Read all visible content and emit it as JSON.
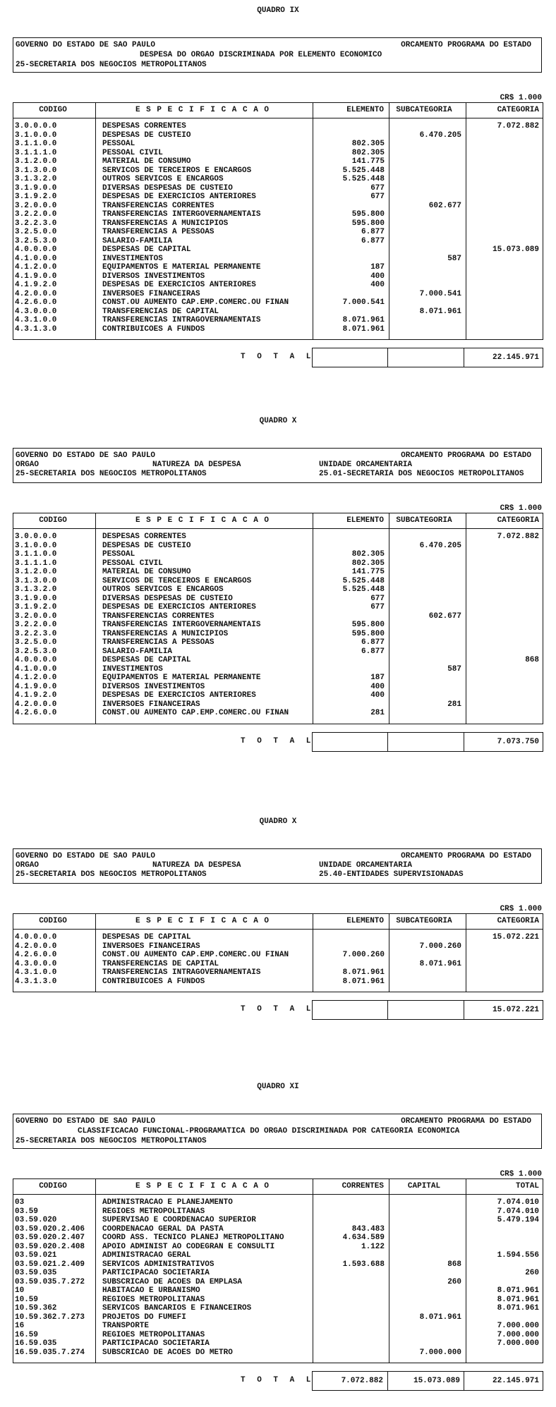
{
  "sections": [
    {
      "id": "quadro-ix",
      "title": "QUADRO IX",
      "header": {
        "left1": "GOVERNO DO ESTADO DE SAO PAULO",
        "right1": "ORCAMENTO PROGRAMA DO ESTADO",
        "center2": "DESPESA DO ORGAO DISCRIMINADA POR ELEMENTO ECONOMICO",
        "left3": "25-SECRETARIA DOS NEGOCIOS METROPOLITANOS"
      },
      "unit": "CR$ 1.000",
      "columns": [
        "CODIGO",
        "E S P E C I F I C A C A O",
        "ELEMENTO",
        "SUBCATEGORIA",
        "CATEGORIA"
      ],
      "rows": [
        [
          "3.0.0.0.0",
          "DESPESAS CORRENTES",
          "",
          "",
          "7.072.882"
        ],
        [
          "3.1.0.0.0",
          "DESPESAS DE CUSTEIO",
          "",
          "6.470.205",
          ""
        ],
        [
          "3.1.1.0.0",
          "PESSOAL",
          "802.305",
          "",
          ""
        ],
        [
          "3.1.1.1.0",
          "PESSOAL CIVIL",
          "802.305",
          "",
          ""
        ],
        [
          "3.1.2.0.0",
          "MATERIAL DE CONSUMO",
          "141.775",
          "",
          ""
        ],
        [
          "3.1.3.0.0",
          "SERVICOS DE TERCEIROS E ENCARGOS",
          "5.525.448",
          "",
          ""
        ],
        [
          "3.1.3.2.0",
          "OUTROS SERVICOS E ENCARGOS",
          "5.525.448",
          "",
          ""
        ],
        [
          "3.1.9.0.0",
          "DIVERSAS DESPESAS DE CUSTEIO",
          "677",
          "",
          ""
        ],
        [
          "3.1.9.2.0",
          "DESPESAS DE EXERCICIOS ANTERIORES",
          "677",
          "",
          ""
        ],
        [
          "3.2.0.0.0",
          "TRANSFERENCIAS CORRENTES",
          "",
          "602.677",
          ""
        ],
        [
          "3.2.2.0.0",
          "TRANSFERENCIAS INTERGOVERNAMENTAIS",
          "595.800",
          "",
          ""
        ],
        [
          "3.2.2.3.0",
          "TRANSFERENCIAS A MUNICIPIOS",
          "595.800",
          "",
          ""
        ],
        [
          "3.2.5.0.0",
          "TRANSFERENCIAS A PESSOAS",
          "6.877",
          "",
          ""
        ],
        [
          "3.2.5.3.0",
          "SALARIO-FAMILIA",
          "6.877",
          "",
          ""
        ],
        [
          "4.0.0.0.0",
          "DESPESAS DE CAPITAL",
          "",
          "",
          "15.073.089"
        ],
        [
          "4.1.0.0.0",
          "INVESTIMENTOS",
          "",
          "587",
          ""
        ],
        [
          "4.1.2.0.0",
          "EQUIPAMENTOS E MATERIAL PERMANENTE",
          "187",
          "",
          ""
        ],
        [
          "4.1.9.0.0",
          "DIVERSOS INVESTIMENTOS",
          "400",
          "",
          ""
        ],
        [
          "4.1.9.2.0",
          "DESPESAS DE EXERCICIOS ANTERIORES",
          "400",
          "",
          ""
        ],
        [
          "4.2.0.0.0",
          "INVERSOES FINANCEIRAS",
          "",
          "7.000.541",
          ""
        ],
        [
          "4.2.6.0.0",
          "CONST.OU AUMENTO CAP.EMP.COMERC.OU FINAN",
          "7.000.541",
          "",
          ""
        ],
        [
          "4.3.0.0.0",
          "TRANSFERENCIAS DE CAPITAL",
          "",
          "8.071.961",
          ""
        ],
        [
          "4.3.1.0.0",
          "TRANSFERENCIAS INTRAGOVERNAMENTAIS",
          "8.071.961",
          "",
          ""
        ],
        [
          "4.3.1.3.0",
          "CONTRIBUICOES A FUNDOS",
          "8.071.961",
          "",
          ""
        ]
      ],
      "total_label": "T O T A L",
      "totals": [
        "",
        "",
        "22.145.971"
      ]
    },
    {
      "id": "quadro-x-2501",
      "title": "QUADRO X",
      "header": {
        "left1": "GOVERNO DO ESTADO DE SAO PAULO",
        "right1": "ORCAMENTO PROGRAMA DO ESTADO",
        "left2": "ORGAO",
        "center2": "NATUREZA DA DESPESA",
        "right2": "UNIDADE ORCAMENTARIA",
        "left3": "25-SECRETARIA DOS NEGOCIOS METROPOLITANOS",
        "right3": "25.01-SECRETARIA DOS NEGOCIOS METROPOLITANOS"
      },
      "unit": "CR$ 1.000",
      "columns": [
        "CODIGO",
        "E S P E C I F I C A C A O",
        "ELEMENTO",
        "SUBCATEGORIA",
        "CATEGORIA"
      ],
      "rows": [
        [
          "3.0.0.0.0",
          "DESPESAS CORRENTES",
          "",
          "",
          "7.072.882"
        ],
        [
          "3.1.0.0.0",
          "DESPESAS DE CUSTEIO",
          "",
          "6.470.205",
          ""
        ],
        [
          "3.1.1.0.0",
          "PESSOAL",
          "802.305",
          "",
          ""
        ],
        [
          "3.1.1.1.0",
          "PESSOAL CIVIL",
          "802.305",
          "",
          ""
        ],
        [
          "3.1.2.0.0",
          "MATERIAL DE CONSUMO",
          "141.775",
          "",
          ""
        ],
        [
          "3.1.3.0.0",
          "SERVICOS DE TERCEIROS E ENCARGOS",
          "5.525.448",
          "",
          ""
        ],
        [
          "3.1.3.2.0",
          "OUTROS SERVICOS E ENCARGOS",
          "5.525.448",
          "",
          ""
        ],
        [
          "3.1.9.0.0",
          "DIVERSAS DESPESAS DE CUSTEIO",
          "677",
          "",
          ""
        ],
        [
          "3.1.9.2.0",
          "DESPESAS DE EXERCICIOS ANTERIORES",
          "677",
          "",
          ""
        ],
        [
          "3.2.0.0.0",
          "TRANSFERENCIAS CORRENTES",
          "",
          "602.677",
          ""
        ],
        [
          "3.2.2.0.0",
          "TRANSFERENCIAS INTERGOVERNAMENTAIS",
          "595.800",
          "",
          ""
        ],
        [
          "3.2.2.3.0",
          "TRANSFERENCIAS A MUNICIPIOS",
          "595.800",
          "",
          ""
        ],
        [
          "3.2.5.0.0",
          "TRANSFERENCIAS A PESSOAS",
          "6.877",
          "",
          ""
        ],
        [
          "3.2.5.3.0",
          "SALARIO-FAMILIA",
          "6.877",
          "",
          ""
        ],
        [
          "4.0.0.0.0",
          "DESPESAS DE CAPITAL",
          "",
          "",
          "868"
        ],
        [
          "4.1.0.0.0",
          "INVESTIMENTOS",
          "",
          "587",
          ""
        ],
        [
          "4.1.2.0.0",
          "EQUIPAMENTOS E MATERIAL PERMANENTE",
          "187",
          "",
          ""
        ],
        [
          "4.1.9.0.0",
          "DIVERSOS INVESTIMENTOS",
          "400",
          "",
          ""
        ],
        [
          "4.1.9.2.0",
          "DESPESAS DE EXERCICIOS ANTERIORES",
          "400",
          "",
          ""
        ],
        [
          "4.2.0.0.0",
          "INVERSOES FINANCEIRAS",
          "",
          "281",
          ""
        ],
        [
          "4.2.6.0.0",
          "CONST.OU AUMENTO CAP.EMP.COMERC.OU FINAN",
          "281",
          "",
          ""
        ]
      ],
      "total_label": "T O T A L",
      "totals": [
        "",
        "",
        "7.073.750"
      ]
    },
    {
      "id": "quadro-x-2540",
      "title": "QUADRO X",
      "header": {
        "left1": "GOVERNO DO ESTADO DE SAO PAULO",
        "right1": "ORCAMENTO PROGRAMA DO ESTADO",
        "left2": "ORGAO",
        "center2": "NATUREZA DA DESPESA",
        "right2": "UNIDADE ORCAMENTARIA",
        "left3": "25-SECRETARIA DOS NEGOCIOS METROPOLITANOS",
        "right3": "25.40-ENTIDADES SUPERVISIONADAS"
      },
      "unit": "CR$ 1.000",
      "columns": [
        "CODIGO",
        "E S P E C I F I C A C A O",
        "ELEMENTO",
        "SUBCATEGORIA",
        "CATEGORIA"
      ],
      "rows": [
        [
          "4.0.0.0.0",
          "DESPESAS DE CAPITAL",
          "",
          "",
          "15.072.221"
        ],
        [
          "4.2.0.0.0",
          "INVERSOES FINANCEIRAS",
          "",
          "7.000.260",
          ""
        ],
        [
          "4.2.6.0.0",
          "CONST.OU AUMENTO CAP.EMP.COMERC.OU FINAN",
          "7.000.260",
          "",
          ""
        ],
        [
          "4.3.0.0.0",
          "TRANSFERENCIAS DE CAPITAL",
          "",
          "8.071.961",
          ""
        ],
        [
          "4.3.1.0.0",
          "TRANSFERENCIAS INTRAGOVERNAMENTAIS",
          "8.071.961",
          "",
          ""
        ],
        [
          "4.3.1.3.0",
          "CONTRIBUICOES A FUNDOS",
          "8.071.961",
          "",
          ""
        ]
      ],
      "total_label": "T O T A L",
      "totals": [
        "",
        "",
        "15.072.221"
      ]
    },
    {
      "id": "quadro-xi",
      "title": "QUADRO XI",
      "header": {
        "left1": "GOVERNO DO ESTADO DE SAO PAULO",
        "right1": "ORCAMENTO PROGRAMA DO ESTADO",
        "center2": "CLASSIFICACAO FUNCIONAL-PROGRAMATICA DO ORGAO DISCRIMINADA POR CATEGORIA ECONOMICA",
        "left3": "25-SECRETARIA DOS NEGOCIOS METROPOLITANOS"
      },
      "unit": "CR$ 1.000",
      "columns": [
        "CODIGO",
        "E S P E C I F I C A C A O",
        "CORRENTES",
        "CAPITAL",
        "TOTAL"
      ],
      "rows": [
        [
          "03",
          "ADMINISTRACAO E PLANEJAMENTO",
          "",
          "",
          "7.074.010"
        ],
        [
          "03.59",
          "REGIOES METROPOLITANAS",
          "",
          "",
          "7.074.010"
        ],
        [
          "03.59.020",
          "SUPERVISAO E COORDENACAO SUPERIOR",
          "",
          "",
          "5.479.194"
        ],
        [
          "03.59.020.2.406",
          "COORDENACAO GERAL DA PASTA",
          "843.483",
          "",
          ""
        ],
        [
          "03.59.020.2.407",
          "COORD ASS. TECNICO PLANEJ METROPOLITANO",
          "4.634.589",
          "",
          ""
        ],
        [
          "03.59.020.2.408",
          "APOIO ADMINIST AO CODEGRAN E CONSULTI",
          "1.122",
          "",
          ""
        ],
        [
          "03.59.021",
          "ADMINISTRACAO GERAL",
          "",
          "",
          "1.594.556"
        ],
        [
          "03.59.021.2.409",
          "SERVICOS ADMINISTRATIVOS",
          "1.593.688",
          "868",
          ""
        ],
        [
          "03.59.035",
          "PARTICIPACAO SOCIETARIA",
          "",
          "",
          "260"
        ],
        [
          "03.59.035.7.272",
          "SUBSCRICAO DE ACOES DA EMPLASA",
          "",
          "260",
          ""
        ],
        [
          "10",
          "HABITACAO E URBANISMO",
          "",
          "",
          "8.071.961"
        ],
        [
          "10.59",
          "REGIOES METROPOLITANAS",
          "",
          "",
          "8.071.961"
        ],
        [
          "10.59.362",
          "SERVICOS BANCARIOS E FINANCEIROS",
          "",
          "",
          "8.071.961"
        ],
        [
          "10.59.362.7.273",
          "PROJETOS DO FUMEFI",
          "",
          "8.071.961",
          ""
        ],
        [
          "16",
          "TRANSPORTE",
          "",
          "",
          "7.000.000"
        ],
        [
          "16.59",
          "REGIOES METROPOLITANAS",
          "",
          "",
          "7.000.000"
        ],
        [
          "16.59.035",
          "PARTICIPACAO SOCIETARIA",
          "",
          "",
          "7.000.000"
        ],
        [
          "16.59.035.7.274",
          "SUBSCRICAO DE ACOES DO METRO",
          "",
          "7.000.000",
          ""
        ]
      ],
      "total_label": "T O T A L",
      "totals": [
        "7.072.882",
        "15.073.089",
        "22.145.971"
      ]
    }
  ]
}
